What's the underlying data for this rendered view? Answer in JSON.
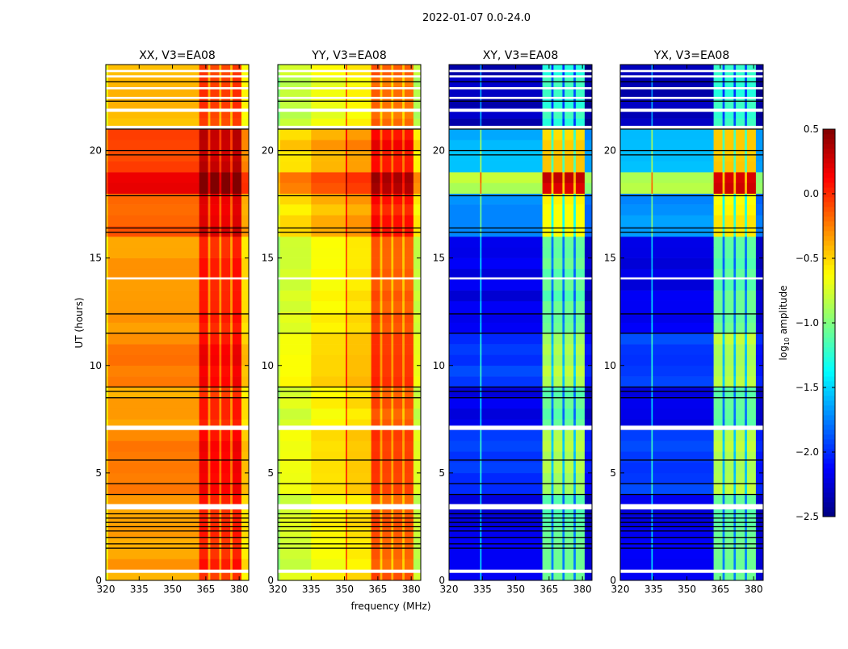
{
  "chart_data": {
    "type": "heatmap",
    "title": "2022-01-07 0.0-24.0",
    "xlabel": "frequency (MHz)",
    "ylabel": "UT (hours)",
    "xlim": [
      320,
      384.3
    ],
    "ylim": [
      0,
      24
    ],
    "xticks": [
      320,
      335,
      350,
      365,
      380
    ],
    "yticks": [
      0,
      5,
      10,
      15,
      20
    ],
    "colorbar": {
      "label_prefix": "log",
      "label_sub": "10",
      "label_suffix": " amplitude",
      "range": [
        -2.5,
        0.5
      ],
      "ticks": [
        0.5,
        0.0,
        -0.5,
        -1.0,
        -1.5,
        -2.0,
        -2.5
      ],
      "tick_labels": [
        "0.5",
        "0.0",
        "−0.5",
        "−1.0",
        "−1.5",
        "−2.0",
        "−2.5"
      ],
      "colormap": "jet"
    },
    "time_segments": [
      {
        "t0": 0,
        "t1": 4,
        "offset": 0.0
      },
      {
        "t0": 4,
        "t1": 7,
        "offset": 0.1
      },
      {
        "t0": 7,
        "t1": 9,
        "offset": 0.0
      },
      {
        "t0": 9,
        "t1": 11.5,
        "offset": 0.1
      },
      {
        "t0": 11.5,
        "t1": 16,
        "offset": 0.0
      },
      {
        "t0": 16,
        "t1": 18,
        "offset": 0.2
      },
      {
        "t0": 18,
        "t1": 18.8,
        "offset": 0.55
      },
      {
        "t0": 18.8,
        "t1": 21,
        "offset": 0.25
      },
      {
        "t0": 21,
        "t1": 24,
        "offset": -0.05
      }
    ],
    "blank_hours": [
      [
        0.35,
        0.5
      ],
      [
        3.3,
        3.55
      ],
      [
        7.0,
        7.2
      ],
      [
        14.0,
        14.1
      ],
      [
        21.0,
        21.15
      ],
      [
        21.8,
        21.95
      ],
      [
        22.4,
        22.5
      ],
      [
        22.85,
        22.95
      ],
      [
        23.4,
        23.5
      ],
      [
        23.65,
        23.75
      ]
    ],
    "flag_hours": [
      1.5,
      1.7,
      2.0,
      2.3,
      2.5,
      2.7,
      2.9,
      3.1,
      4.0,
      4.5,
      5.6,
      8.5,
      8.8,
      9.0,
      11.5,
      12.4,
      16.2,
      16.4,
      17.9,
      19.8,
      20.0,
      21.0,
      22.3,
      23.2
    ],
    "panels": [
      {
        "title": "XX, V3=EA08",
        "offset_gain": 1.0,
        "freq_profile": [
          [
            320,
            321,
            -0.6
          ],
          [
            321,
            362,
            -0.35
          ],
          [
            362,
            366,
            0.05
          ],
          [
            366,
            367,
            -0.35
          ],
          [
            367,
            371,
            0.0
          ],
          [
            371,
            372,
            -0.35
          ],
          [
            372,
            376,
            0.0
          ],
          [
            376,
            377,
            -0.35
          ],
          [
            377,
            381,
            0.05
          ],
          [
            381,
            384.3,
            -0.55
          ]
        ]
      },
      {
        "title": "YY, V3=EA08",
        "offset_gain": 1.0,
        "freq_profile": [
          [
            320,
            321,
            -0.95
          ],
          [
            321,
            335,
            -0.75
          ],
          [
            335,
            350.5,
            -0.62
          ],
          [
            350.5,
            351.2,
            -0.1
          ],
          [
            351.2,
            362,
            -0.55
          ],
          [
            362,
            366,
            -0.1
          ],
          [
            366,
            367,
            -0.45
          ],
          [
            367,
            371,
            -0.15
          ],
          [
            371,
            372,
            -0.45
          ],
          [
            372,
            376,
            -0.15
          ],
          [
            376,
            377,
            -0.45
          ],
          [
            377,
            381,
            -0.15
          ],
          [
            381,
            384.3,
            -0.8
          ]
        ]
      },
      {
        "title": "XY, V3=EA08",
        "offset_gain": 2.5,
        "freq_profile": [
          [
            320,
            334,
            -2.2
          ],
          [
            334,
            334.6,
            -1.5
          ],
          [
            334.6,
            362,
            -2.2
          ],
          [
            362,
            366,
            -1.1
          ],
          [
            366,
            367,
            -1.8
          ],
          [
            367,
            371,
            -1.1
          ],
          [
            371,
            372,
            -1.8
          ],
          [
            372,
            376,
            -1.1
          ],
          [
            376,
            377,
            -1.8
          ],
          [
            377,
            381,
            -1.1
          ],
          [
            381,
            384.3,
            -2.3
          ]
        ]
      },
      {
        "title": "YX, V3=EA08",
        "offset_gain": 2.5,
        "freq_profile": [
          [
            320,
            334,
            -2.2
          ],
          [
            334,
            334.6,
            -1.5
          ],
          [
            334.6,
            362,
            -2.2
          ],
          [
            362,
            366,
            -1.1
          ],
          [
            366,
            367,
            -1.8
          ],
          [
            367,
            371,
            -1.1
          ],
          [
            371,
            372,
            -1.8
          ],
          [
            372,
            376,
            -1.1
          ],
          [
            376,
            377,
            -1.8
          ],
          [
            377,
            381,
            -1.1
          ],
          [
            381,
            384.3,
            -2.3
          ]
        ]
      }
    ]
  }
}
